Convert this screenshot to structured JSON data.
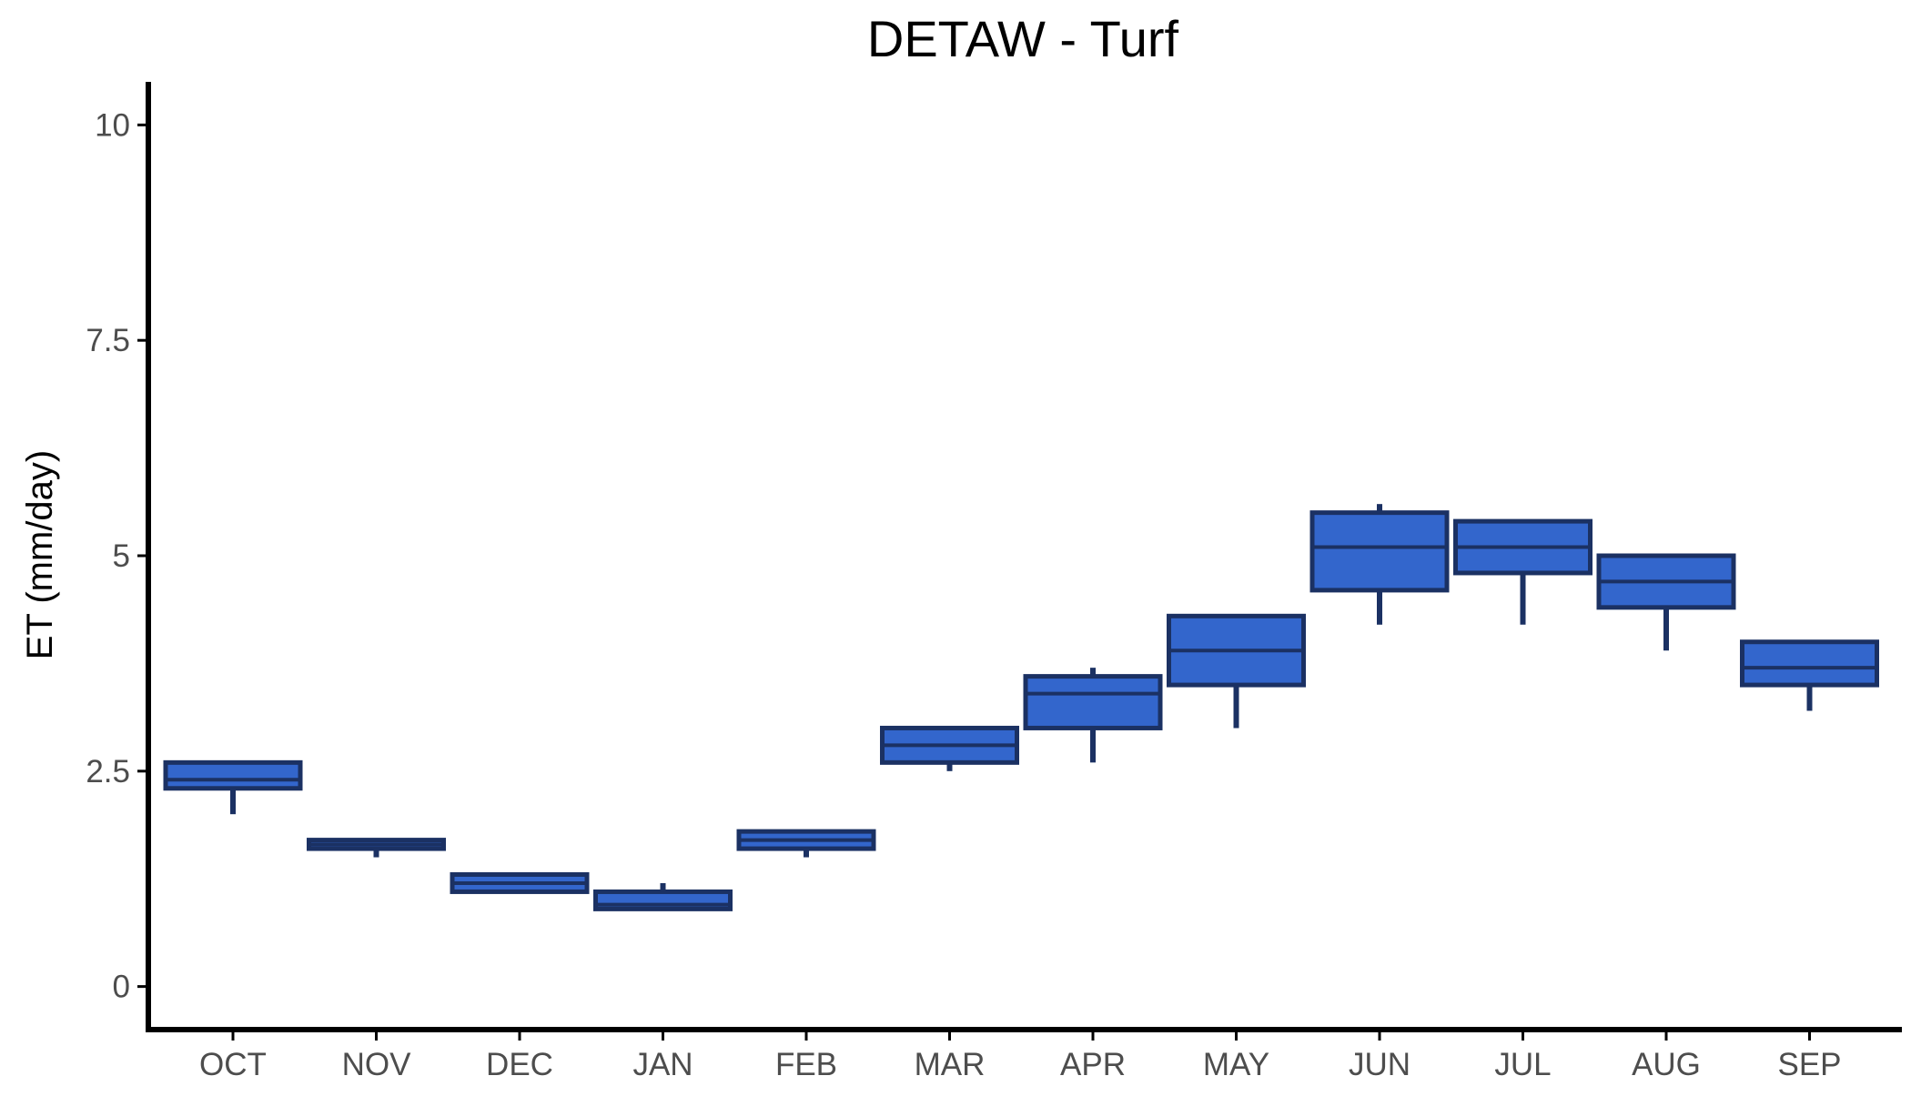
{
  "chart_data": {
    "type": "box",
    "title": "DETAW - Turf",
    "xlabel": "",
    "ylabel": "ET (mm/day)",
    "ylim": [
      -0.5,
      10.5
    ],
    "yticks": [
      0,
      2.5,
      5,
      7.5,
      10
    ],
    "ytick_labels": [
      "0",
      "2.5",
      "5",
      "7.5",
      "10"
    ],
    "grid": false,
    "legend": "none",
    "colors": {
      "box_fill": "#3366cc",
      "box_outline": "#1b3163",
      "axis": "#000000",
      "tick_text": "#4d4d4d"
    },
    "categories": [
      "OCT",
      "NOV",
      "DEC",
      "JAN",
      "FEB",
      "MAR",
      "APR",
      "MAY",
      "JUN",
      "JUL",
      "AUG",
      "SEP"
    ],
    "boxes": [
      {
        "category": "OCT",
        "min": 2.0,
        "q1": 2.3,
        "median": 2.4,
        "q3": 2.6,
        "max": 2.6
      },
      {
        "category": "NOV",
        "min": 1.5,
        "q1": 1.6,
        "median": 1.65,
        "q3": 1.7,
        "max": 1.7
      },
      {
        "category": "DEC",
        "min": 1.1,
        "q1": 1.1,
        "median": 1.2,
        "q3": 1.3,
        "max": 1.3
      },
      {
        "category": "JAN",
        "min": 0.9,
        "q1": 0.9,
        "median": 0.95,
        "q3": 1.1,
        "max": 1.2
      },
      {
        "category": "FEB",
        "min": 1.5,
        "q1": 1.6,
        "median": 1.7,
        "q3": 1.8,
        "max": 1.8
      },
      {
        "category": "MAR",
        "min": 2.5,
        "q1": 2.6,
        "median": 2.8,
        "q3": 3.0,
        "max": 3.0
      },
      {
        "category": "APR",
        "min": 2.6,
        "q1": 3.0,
        "median": 3.4,
        "q3": 3.6,
        "max": 3.7
      },
      {
        "category": "MAY",
        "min": 3.0,
        "q1": 3.5,
        "median": 3.9,
        "q3": 4.3,
        "max": 4.3
      },
      {
        "category": "JUN",
        "min": 4.2,
        "q1": 4.6,
        "median": 5.1,
        "q3": 5.5,
        "max": 5.6
      },
      {
        "category": "JUL",
        "min": 4.2,
        "q1": 4.8,
        "median": 5.1,
        "q3": 5.4,
        "max": 5.4
      },
      {
        "category": "AUG",
        "min": 3.9,
        "q1": 4.4,
        "median": 4.7,
        "q3": 5.0,
        "max": 5.0
      },
      {
        "category": "SEP",
        "min": 3.2,
        "q1": 3.5,
        "median": 3.7,
        "q3": 4.0,
        "max": 4.0
      }
    ]
  }
}
